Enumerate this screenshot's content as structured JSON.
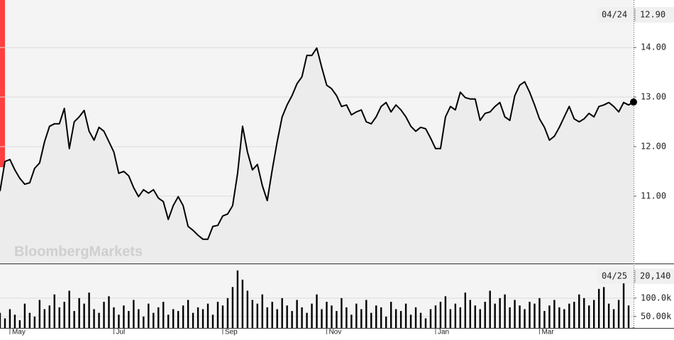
{
  "chart_data": {
    "type": "line",
    "watermark": "BloombergMarkets",
    "xlim": [
      0,
      128
    ],
    "xticks": [
      {
        "value": 2,
        "label": "May"
      },
      {
        "value": 23,
        "label": "Jul"
      },
      {
        "value": 45,
        "label": "Sep"
      },
      {
        "value": 66,
        "label": "Nov"
      },
      {
        "value": 88,
        "label": "Jan"
      },
      {
        "value": 109,
        "label": "Mar"
      }
    ],
    "ylim": [
      9.64,
      14.96
    ],
    "yticks": [
      {
        "value": 14,
        "label": "14.00"
      },
      {
        "value": 13,
        "label": "13.00"
      },
      {
        "value": 12,
        "label": "12.00"
      },
      {
        "value": 11,
        "label": "11.00"
      }
    ],
    "grid": true,
    "price": {
      "color": "#000000",
      "values": [
        11.1,
        11.7,
        11.74,
        11.53,
        11.36,
        11.24,
        11.27,
        11.56,
        11.67,
        12.1,
        12.41,
        12.46,
        12.46,
        12.77,
        11.96,
        12.5,
        12.6,
        12.73,
        12.31,
        12.13,
        12.39,
        12.31,
        12.1,
        11.89,
        11.46,
        11.5,
        11.41,
        11.17,
        10.99,
        11.13,
        11.06,
        11.13,
        10.96,
        10.89,
        10.53,
        10.81,
        10.99,
        10.81,
        10.39,
        10.31,
        10.21,
        10.13,
        10.13,
        10.39,
        10.41,
        10.6,
        10.64,
        10.81,
        11.46,
        12.41,
        11.89,
        11.53,
        11.64,
        11.21,
        10.91,
        11.53,
        12.1,
        12.6,
        12.84,
        13.03,
        13.27,
        13.41,
        13.84,
        13.84,
        13.99,
        13.6,
        13.24,
        13.17,
        13.03,
        12.81,
        12.84,
        12.64,
        12.7,
        12.74,
        12.5,
        12.46,
        12.6,
        12.81,
        12.89,
        12.7,
        12.84,
        12.74,
        12.6,
        12.41,
        12.31,
        12.39,
        12.36,
        12.17,
        11.96,
        11.96,
        12.6,
        12.81,
        12.74,
        13.1,
        12.99,
        12.96,
        12.96,
        12.53,
        12.67,
        12.7,
        12.81,
        12.89,
        12.6,
        12.53,
        13.03,
        13.24,
        13.31,
        13.1,
        12.84,
        12.56,
        12.39,
        12.13,
        12.21,
        12.39,
        12.6,
        12.81,
        12.56,
        12.5,
        12.56,
        12.67,
        12.6,
        12.81,
        12.84,
        12.89,
        12.81,
        12.7,
        12.89,
        12.84,
        12.9
      ]
    },
    "last_price": {
      "date": "04/24",
      "value": 12.9,
      "label": "12.90"
    },
    "y2lim": [
      19000,
      192000
    ],
    "y2ticks": [
      {
        "value": 100000,
        "label": "100.0k"
      },
      {
        "value": 50000,
        "label": "50.00k"
      }
    ],
    "volume": {
      "color": "#000000",
      "axis": "y2",
      "values": [
        60000,
        45000,
        70000,
        55000,
        40000,
        85000,
        60000,
        50000,
        95000,
        70000,
        80000,
        110000,
        75000,
        90000,
        120000,
        65000,
        100000,
        85000,
        115000,
        70000,
        60000,
        90000,
        105000,
        75000,
        55000,
        80000,
        65000,
        95000,
        70000,
        50000,
        85000,
        60000,
        75000,
        90000,
        55000,
        70000,
        65000,
        80000,
        95000,
        60000,
        75000,
        70000,
        85000,
        55000,
        90000,
        80000,
        100000,
        130000,
        175000,
        150000,
        120000,
        95000,
        85000,
        110000,
        75000,
        90000,
        70000,
        100000,
        80000,
        65000,
        95000,
        75000,
        60000,
        85000,
        110000,
        70000,
        90000,
        80000,
        65000,
        100000,
        75000,
        55000,
        85000,
        70000,
        95000,
        60000,
        80000,
        75000,
        50000,
        90000,
        70000,
        65000,
        85000,
        55000,
        75000,
        60000,
        45000,
        70000,
        80000,
        90000,
        105000,
        70000,
        85000,
        75000,
        115000,
        95000,
        80000,
        70000,
        90000,
        120000,
        85000,
        100000,
        110000,
        75000,
        95000,
        80000,
        70000,
        90000,
        85000,
        100000,
        65000,
        80000,
        95000,
        75000,
        70000,
        85000,
        90000,
        110000,
        100000,
        80000,
        95000,
        125000,
        130000,
        85000,
        70000,
        95000,
        140000,
        80000,
        20140
      ]
    },
    "last_volume": {
      "date": "04/25",
      "value": 20140,
      "label": "20,140"
    }
  }
}
